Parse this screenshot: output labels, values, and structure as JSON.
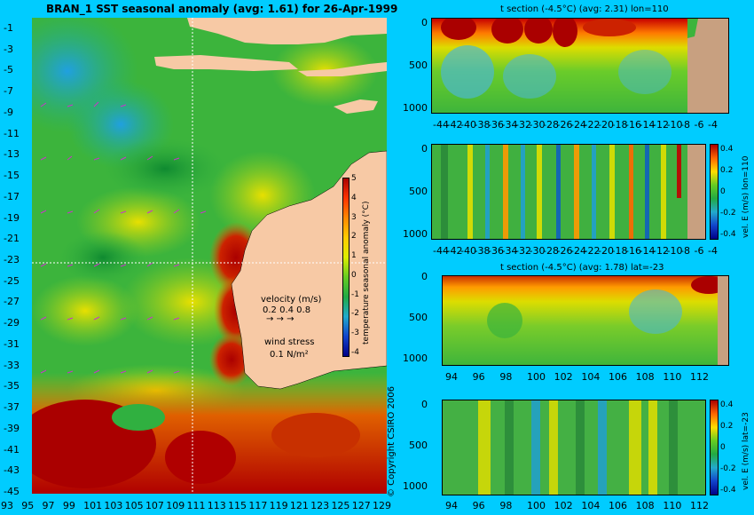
{
  "chart_data": [
    {
      "type": "heatmap",
      "title": "BRAN_1 SST seasonal anomaly (avg: 1.61) for 26-Apr-1999",
      "x_ticks": [
        "93",
        "95",
        "97",
        "99",
        "101",
        "103",
        "105",
        "107",
        "109",
        "111",
        "113",
        "115",
        "117",
        "119",
        "121",
        "123",
        "125",
        "127",
        "129"
      ],
      "y_ticks": [
        "-1",
        "-3",
        "-5",
        "-7",
        "-9",
        "-11",
        "-13",
        "-15",
        "-17",
        "-19",
        "-21",
        "-23",
        "-25",
        "-27",
        "-29",
        "-31",
        "-33",
        "-35",
        "-37",
        "-39",
        "-41",
        "-43",
        "-45"
      ],
      "xlim": [
        93,
        130
      ],
      "ylim": [
        -45,
        0
      ],
      "colorbar": {
        "label": "temperature seasonal anomaly (°C)",
        "ticks": [
          "5",
          "4",
          "3",
          "2",
          "1",
          "0",
          "-1",
          "-2",
          "-3",
          "-4"
        ],
        "range": [
          -4,
          5
        ]
      },
      "legend": {
        "velocity_label": "velocity (m/s)",
        "velocity_values": "0.2 0.4 0.8",
        "velocity_arrows": "→ → →",
        "wind_label": "wind stress",
        "wind_value": "0.1 N/m²"
      },
      "section_lines": {
        "lon": 110,
        "lat": -23
      }
    },
    {
      "type": "heatmap",
      "title": "t section (-4.5°C) (avg: 2.31) lon=110",
      "x_ticks": [
        "-44",
        "-42",
        "-40",
        "-38",
        "-36",
        "-34",
        "-32",
        "-30",
        "-28",
        "-26",
        "-24",
        "-22",
        "-20",
        "-18",
        "-16",
        "-14",
        "-12",
        "-10",
        "-8",
        "-6",
        "-4"
      ],
      "y_ticks": [
        "0",
        "500",
        "1000"
      ]
    },
    {
      "type": "heatmap",
      "title": "",
      "x_ticks": [
        "-44",
        "-42",
        "-40",
        "-38",
        "-36",
        "-34",
        "-32",
        "-30",
        "-28",
        "-26",
        "-24",
        "-22",
        "-20",
        "-18",
        "-16",
        "-14",
        "-12",
        "-10",
        "-8",
        "-6",
        "-4"
      ],
      "y_ticks": [
        "0",
        "500",
        "1000"
      ],
      "colorbar": {
        "label": "vel. E (m/s) lon=110",
        "ticks": [
          "0.4",
          "0.2",
          "0",
          "-0.2",
          "-0.4"
        ]
      }
    },
    {
      "type": "heatmap",
      "title": "t section (-4.5°C) (avg: 1.78) lat=-23",
      "x_ticks": [
        "94",
        "96",
        "98",
        "100",
        "102",
        "104",
        "106",
        "108",
        "110",
        "112"
      ],
      "y_ticks": [
        "0",
        "500",
        "1000"
      ]
    },
    {
      "type": "heatmap",
      "title": "",
      "x_ticks": [
        "94",
        "96",
        "98",
        "100",
        "102",
        "104",
        "106",
        "108",
        "110",
        "112"
      ],
      "y_ticks": [
        "0",
        "500",
        "1000"
      ],
      "colorbar": {
        "label": "vel. E (m/s) lat=-23",
        "ticks": [
          "0.4",
          "0.2",
          "0",
          "-0.2",
          "-0.4"
        ]
      }
    }
  ],
  "copyright": "© Copyright CSIRO 2006",
  "colors": {
    "background": "#00ccff",
    "land": "#f7c9a5",
    "seabed": "#c8a080",
    "warm": "#aa0000",
    "cool": "#1a9c3a"
  }
}
